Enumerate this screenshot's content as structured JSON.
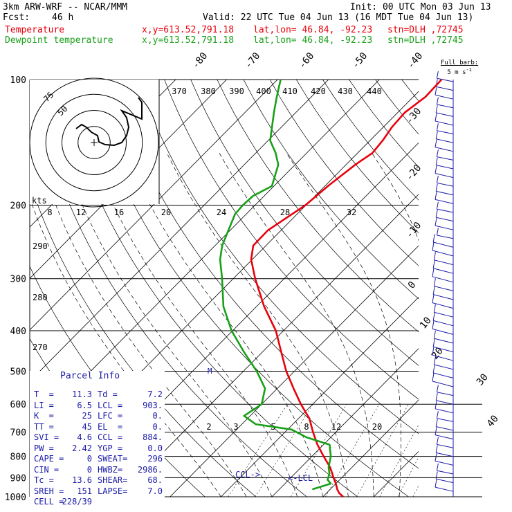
{
  "header": {
    "model": "3km ARW-WRF -- NCAR/MMM",
    "init": "Init: 00 UTC Mon 03 Jun 13",
    "fcst_label": "Fcst:",
    "fcst_value": "46 h",
    "valid": "Valid: 22 UTC Tue 04 Jun 13 (16 MDT Tue 04 Jun 13)",
    "temp_label": "Temperature",
    "dew_label": "Dewpoint temperature",
    "xy": "x,y=613.52,791.18",
    "latlon": "lat,lon= 46.84, -92.23",
    "stn": "stn=DLH ,72745"
  },
  "barb_label": {
    "line1": "Full barb:",
    "line2": "5 m s",
    "exp": "-1"
  },
  "parcel_info": {
    "title": "Parcel Info",
    "rows": [
      {
        "lk": "T  =",
        "lv": "11.3",
        "rk": "Td =",
        "rv": "7.2"
      },
      {
        "lk": "LI =",
        "lv": "6.5",
        "rk": "LCL =",
        "rv": "903."
      },
      {
        "lk": "K  =",
        "lv": "25",
        "rk": "LFC =",
        "rv": "0."
      },
      {
        "lk": "TT =",
        "lv": "45",
        "rk": "EL  =",
        "rv": "0."
      },
      {
        "lk": "SVI =",
        "lv": "4.6",
        "rk": "CCL =",
        "rv": "884."
      },
      {
        "lk": "PW =",
        "lv": "2.42",
        "rk": "YGP =",
        "rv": "0.0"
      },
      {
        "lk": "CAPE =",
        "lv": "0",
        "rk": "SWEAT=",
        "rv": "296"
      },
      {
        "lk": "CIN =",
        "lv": "0",
        "rk": "HWBZ=",
        "rv": "2986."
      },
      {
        "lk": "Tc =",
        "lv": "13.6",
        "rk": "SHEAR=",
        "rv": "68."
      },
      {
        "lk": "SREH =",
        "lv": "151",
        "rk": "LAPSE=",
        "rv": "7.0"
      },
      {
        "lk": "CELL =",
        "lv": "228/39",
        "rk": "",
        "rv": ""
      }
    ]
  },
  "chart_data": {
    "type": "line",
    "title": "Skew-T log-P sounding",
    "pressure_levels": [
      100,
      200,
      300,
      400,
      500,
      600,
      700,
      800,
      900,
      1000
    ],
    "pressure_tick_labels": [
      "100",
      "200",
      "300",
      "400",
      "500",
      "600",
      "700",
      "800",
      "900",
      "1000"
    ],
    "isotherm_labels": [
      "-80",
      "-70",
      "-60",
      "-50",
      "-40",
      "-30",
      "-20",
      "-10",
      "0",
      "10",
      "20",
      "30",
      "40"
    ],
    "theta_labels": [
      "370",
      "380",
      "390",
      "400",
      "410",
      "420",
      "430",
      "440"
    ],
    "theta_labels_left": [
      "290",
      "280",
      "270"
    ],
    "mixing_ratio_labels": [
      "8",
      "12",
      "16",
      "20",
      "24",
      "28",
      "32"
    ],
    "mixing_ratio_labels_low": [
      "2",
      "3",
      "5",
      "8",
      "12",
      "20"
    ],
    "hodograph": {
      "kts_label": "kts",
      "ring_labels": [
        "50",
        "75"
      ]
    },
    "lcl_label": "LCL",
    "ccl_label": "CCL",
    "series": [
      {
        "name": "Temperature",
        "color": "#e8000b",
        "points": [
          {
            "p": 1000,
            "t": 14.0
          },
          {
            "p": 980,
            "t": 12.5
          },
          {
            "p": 960,
            "t": 11.4
          },
          {
            "p": 930,
            "t": 10.0
          },
          {
            "p": 900,
            "t": 8.4
          },
          {
            "p": 870,
            "t": 6.8
          },
          {
            "p": 850,
            "t": 5.7
          },
          {
            "p": 800,
            "t": 2.3
          },
          {
            "p": 750,
            "t": -1.2
          },
          {
            "p": 700,
            "t": -4.5
          },
          {
            "p": 650,
            "t": -7.8
          },
          {
            "p": 600,
            "t": -12.3
          },
          {
            "p": 550,
            "t": -16.8
          },
          {
            "p": 500,
            "t": -21.6
          },
          {
            "p": 450,
            "t": -26.3
          },
          {
            "p": 400,
            "t": -31.5
          },
          {
            "p": 350,
            "t": -38.5
          },
          {
            "p": 300,
            "t": -45.7
          },
          {
            "p": 270,
            "t": -50.2
          },
          {
            "p": 250,
            "t": -52.5
          },
          {
            "p": 230,
            "t": -52.6
          },
          {
            "p": 210,
            "t": -51.0
          },
          {
            "p": 200,
            "t": -50.1
          },
          {
            "p": 180,
            "t": -49.4
          },
          {
            "p": 160,
            "t": -48.2
          },
          {
            "p": 150,
            "t": -47.1
          },
          {
            "p": 140,
            "t": -47.5
          },
          {
            "p": 130,
            "t": -48.3
          },
          {
            "p": 120,
            "t": -48.6
          },
          {
            "p": 110,
            "t": -47.6
          },
          {
            "p": 100,
            "t": -47.8
          }
        ]
      },
      {
        "name": "Dewpoint temperature",
        "color": "#18a018",
        "points": [
          {
            "p": 960,
            "t": 6.5
          },
          {
            "p": 930,
            "t": 9.0
          },
          {
            "p": 910,
            "t": 7.6
          },
          {
            "p": 880,
            "t": 6.8
          },
          {
            "p": 850,
            "t": 5.4
          },
          {
            "p": 800,
            "t": 3.7
          },
          {
            "p": 750,
            "t": 1.2
          },
          {
            "p": 720,
            "t": -4.8
          },
          {
            "p": 690,
            "t": -9.2
          },
          {
            "p": 670,
            "t": -17.3
          },
          {
            "p": 640,
            "t": -21.2
          },
          {
            "p": 600,
            "t": -20.0
          },
          {
            "p": 550,
            "t": -22.4
          },
          {
            "p": 500,
            "t": -27.4
          },
          {
            "p": 450,
            "t": -33.6
          },
          {
            "p": 400,
            "t": -40.2
          },
          {
            "p": 350,
            "t": -46.5
          },
          {
            "p": 300,
            "t": -52.2
          },
          {
            "p": 270,
            "t": -56.3
          },
          {
            "p": 250,
            "t": -58.6
          },
          {
            "p": 210,
            "t": -62.2
          },
          {
            "p": 200,
            "t": -62.4
          },
          {
            "p": 190,
            "t": -62.2
          },
          {
            "p": 180,
            "t": -60.4
          },
          {
            "p": 160,
            "t": -63.3
          },
          {
            "p": 150,
            "t": -66.1
          },
          {
            "p": 140,
            "t": -69.6
          },
          {
            "p": 120,
            "t": -74.3
          },
          {
            "p": 110,
            "t": -76.8
          },
          {
            "p": 100,
            "t": -79.4
          }
        ]
      }
    ],
    "grid": true
  }
}
